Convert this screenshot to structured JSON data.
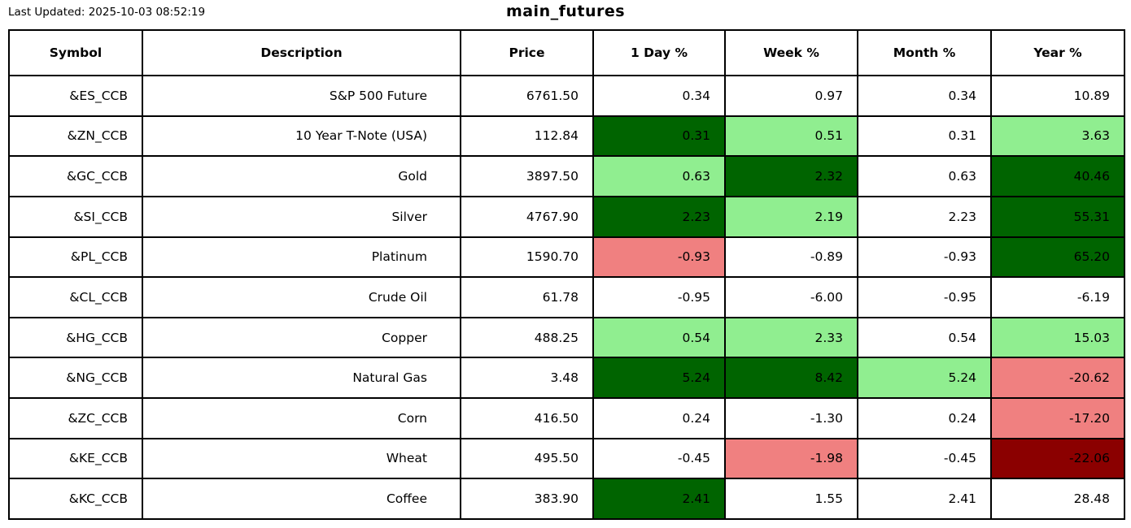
{
  "page": {
    "last_updated_label": "Last Updated: 2025-10-03 08:52:19",
    "title": "main_futures"
  },
  "colors": {
    "positive_strong": "#006400",
    "positive_mild": "#90EE90",
    "negative_mild": "#F08080",
    "negative_strong": "#8B0000",
    "neutral": "#FFFFFF",
    "border": "#000000",
    "text": "#000000"
  },
  "chart_data": {
    "type": "table",
    "title": "main_futures",
    "last_updated": "2025-10-03 08:52:19",
    "columns": [
      "Symbol",
      "Description",
      "Price",
      "1 Day %",
      "Week %",
      "Month %",
      "Year %"
    ],
    "column_keys": [
      "symbol",
      "description",
      "price",
      "day",
      "week",
      "month",
      "year"
    ],
    "rows": [
      {
        "cells": [
          "&ES_CCB",
          "S&P 500 Future",
          "6761.50",
          "0.34",
          "0.97",
          "0.34",
          "10.89"
        ],
        "bg": [
          null,
          null,
          null,
          null,
          null,
          null,
          null
        ]
      },
      {
        "cells": [
          "&ZN_CCB",
          "10 Year T-Note (USA)",
          "112.84",
          "0.31",
          "0.51",
          "0.31",
          "3.63"
        ],
        "bg": [
          null,
          null,
          null,
          "positive_strong",
          "positive_mild",
          null,
          "positive_mild"
        ]
      },
      {
        "cells": [
          "&GC_CCB",
          "Gold",
          "3897.50",
          "0.63",
          "2.32",
          "0.63",
          "40.46"
        ],
        "bg": [
          null,
          null,
          null,
          "positive_mild",
          "positive_strong",
          null,
          "positive_strong"
        ]
      },
      {
        "cells": [
          "&SI_CCB",
          "Silver",
          "4767.90",
          "2.23",
          "2.19",
          "2.23",
          "55.31"
        ],
        "bg": [
          null,
          null,
          null,
          "positive_strong",
          "positive_mild",
          null,
          "positive_strong"
        ]
      },
      {
        "cells": [
          "&PL_CCB",
          "Platinum",
          "1590.70",
          "-0.93",
          "-0.89",
          "-0.93",
          "65.20"
        ],
        "bg": [
          null,
          null,
          null,
          "negative_mild",
          null,
          null,
          "positive_strong"
        ]
      },
      {
        "cells": [
          "&CL_CCB",
          "Crude Oil",
          "61.78",
          "-0.95",
          "-6.00",
          "-0.95",
          "-6.19"
        ],
        "bg": [
          null,
          null,
          null,
          null,
          null,
          null,
          null
        ]
      },
      {
        "cells": [
          "&HG_CCB",
          "Copper",
          "488.25",
          "0.54",
          "2.33",
          "0.54",
          "15.03"
        ],
        "bg": [
          null,
          null,
          null,
          "positive_mild",
          "positive_mild",
          null,
          "positive_mild"
        ]
      },
      {
        "cells": [
          "&NG_CCB",
          "Natural Gas",
          "3.48",
          "5.24",
          "8.42",
          "5.24",
          "-20.62"
        ],
        "bg": [
          null,
          null,
          null,
          "positive_strong",
          "positive_strong",
          "positive_mild",
          "negative_mild"
        ]
      },
      {
        "cells": [
          "&ZC_CCB",
          "Corn",
          "416.50",
          "0.24",
          "-1.30",
          "0.24",
          "-17.20"
        ],
        "bg": [
          null,
          null,
          null,
          null,
          null,
          null,
          "negative_mild"
        ]
      },
      {
        "cells": [
          "&KE_CCB",
          "Wheat",
          "495.50",
          "-0.45",
          "-1.98",
          "-0.45",
          "-22.06"
        ],
        "bg": [
          null,
          null,
          null,
          null,
          "negative_mild",
          null,
          "negative_strong"
        ]
      },
      {
        "cells": [
          "&KC_CCB",
          "Coffee",
          "383.90",
          "2.41",
          "1.55",
          "2.41",
          "28.48"
        ],
        "bg": [
          null,
          null,
          null,
          "positive_strong",
          null,
          null,
          null
        ]
      }
    ]
  }
}
